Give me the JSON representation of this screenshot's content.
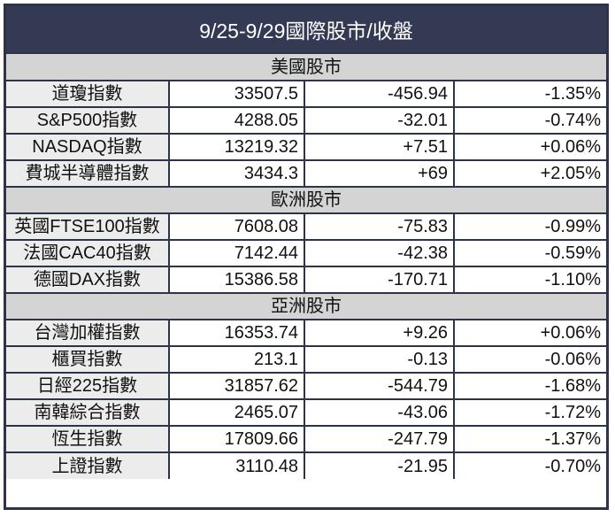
{
  "title": "9/25-9/29國際股市/收盤",
  "sections": [
    {
      "label": "美國股市",
      "rows": [
        {
          "name": "道瓊指數",
          "close": "33507.5",
          "change": "-456.94",
          "pct": "-1.35%"
        },
        {
          "name": "S&P500指數",
          "close": "4288.05",
          "change": "-32.01",
          "pct": "-0.74%"
        },
        {
          "name": "NASDAQ指數",
          "close": "13219.32",
          "change": "+7.51",
          "pct": "+0.06%"
        },
        {
          "name": "費城半導體指數",
          "close": "3434.3",
          "change": "+69",
          "pct": "+2.05%"
        }
      ]
    },
    {
      "label": "歐洲股市",
      "rows": [
        {
          "name": "英國FTSE100指數",
          "close": "7608.08",
          "change": "-75.83",
          "pct": "-0.99%"
        },
        {
          "name": "法國CAC40指數",
          "close": "7142.44",
          "change": "-42.38",
          "pct": "-0.59%"
        },
        {
          "name": "德國DAX指數",
          "close": "15386.58",
          "change": "-170.71",
          "pct": "-1.10%"
        }
      ]
    },
    {
      "label": "亞洲股市",
      "rows": [
        {
          "name": "台灣加權指數",
          "close": "16353.74",
          "change": "+9.26",
          "pct": "+0.06%"
        },
        {
          "name": "櫃買指數",
          "close": "213.1",
          "change": "-0.13",
          "pct": "-0.06%"
        },
        {
          "name": "日經225指數",
          "close": "31857.62",
          "change": "-544.79",
          "pct": "-1.68%"
        },
        {
          "name": "南韓綜合指數",
          "close": "2465.07",
          "change": "-43.06",
          "pct": "-1.72%"
        },
        {
          "name": "恆生指數",
          "close": "17809.66",
          "change": "-247.79",
          "pct": "-1.37%"
        },
        {
          "name": "上證指數",
          "close": "3110.48",
          "change": "-21.95",
          "pct": "-0.70%"
        }
      ]
    }
  ]
}
